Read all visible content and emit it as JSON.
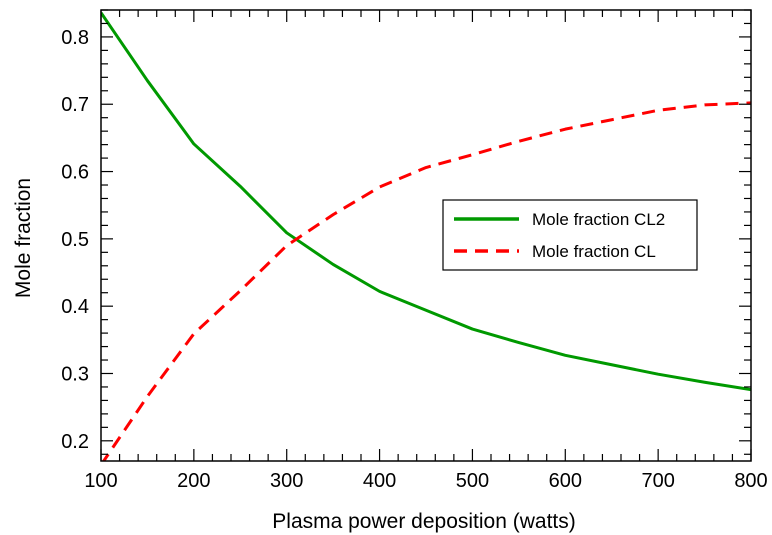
{
  "chart_data": {
    "type": "line",
    "title": "",
    "xlabel": "Plasma power deposition (watts)",
    "ylabel": "Mole fraction",
    "xlim": [
      100,
      800
    ],
    "ylim": [
      0.17,
      0.84
    ],
    "grid": false,
    "legend_placement": "right-middle",
    "x_ticks": [
      100,
      200,
      300,
      400,
      500,
      600,
      700,
      800
    ],
    "x_tick_labels": [
      "100",
      "200",
      "300",
      "400",
      "500",
      "600",
      "700",
      "800"
    ],
    "y_ticks": [
      0.2,
      0.3,
      0.4,
      0.5,
      0.6,
      0.7,
      0.8
    ],
    "y_tick_labels": [
      "0.2",
      "0.3",
      "0.4",
      "0.5",
      "0.6",
      "0.7",
      "0.8"
    ],
    "series": [
      {
        "name": "Mole fraction CL2",
        "color": "#009900",
        "dash": "solid",
        "x": [
          100,
          150,
          200,
          250,
          300,
          350,
          400,
          450,
          500,
          550,
          600,
          650,
          700,
          750,
          800
        ],
        "y": [
          0.836,
          0.735,
          0.641,
          0.578,
          0.509,
          0.462,
          0.422,
          0.394,
          0.366,
          0.346,
          0.327,
          0.313,
          0.299,
          0.287,
          0.276
        ]
      },
      {
        "name": "Mole fraction CL",
        "color": "#ff0000",
        "dash": "dashed",
        "x": [
          100,
          150,
          200,
          250,
          300,
          350,
          400,
          450,
          500,
          550,
          600,
          650,
          700,
          750,
          800
        ],
        "y": [
          0.164,
          0.266,
          0.359,
          0.423,
          0.49,
          0.536,
          0.577,
          0.606,
          0.625,
          0.645,
          0.663,
          0.677,
          0.691,
          0.699,
          0.702
        ]
      }
    ]
  }
}
